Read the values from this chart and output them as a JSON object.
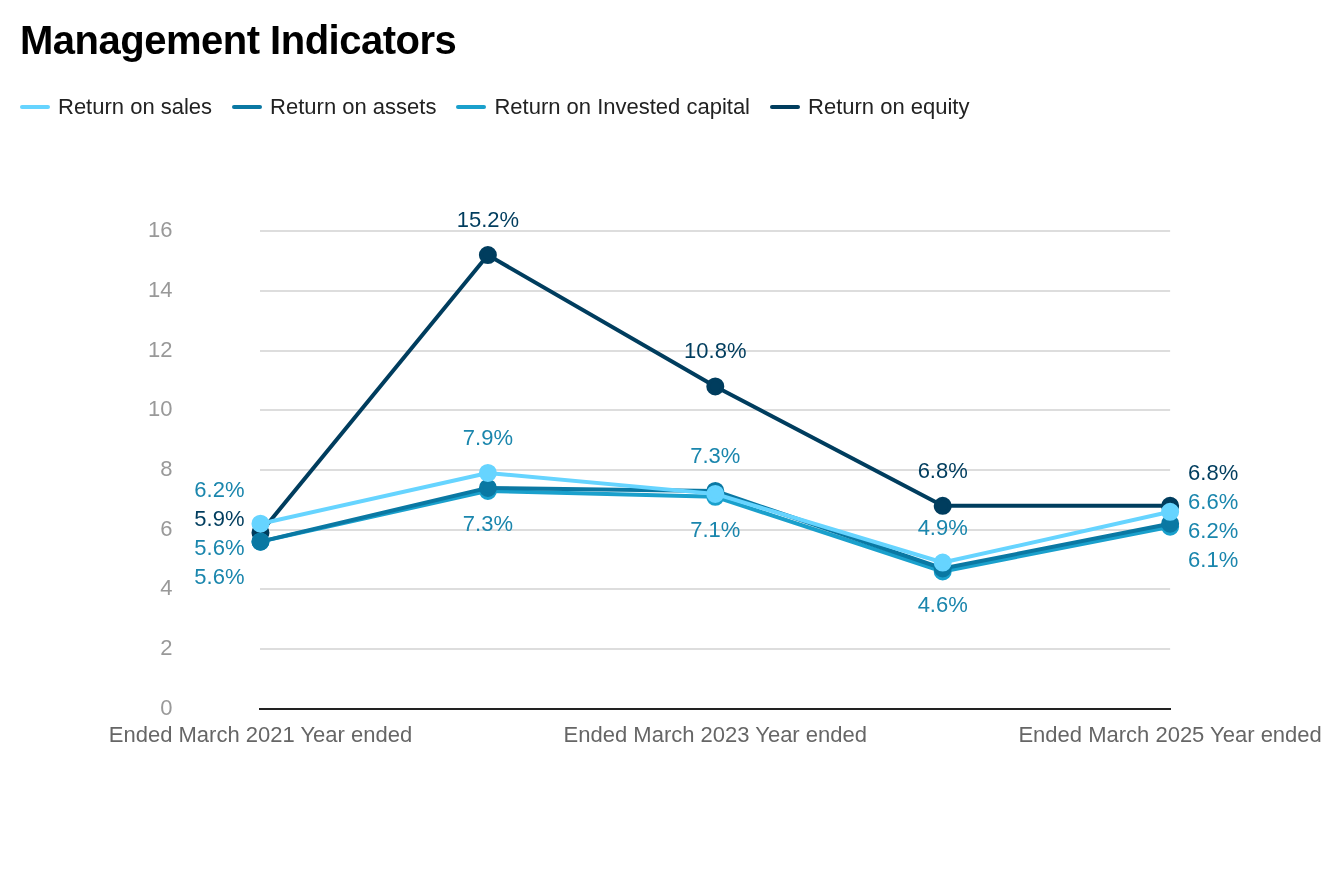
{
  "chart_data": {
    "type": "line",
    "title": "Management Indicators",
    "categories": [
      "Ended March 2021 Year ended",
      null,
      "Ended March 2023 Year ended",
      null,
      "Ended March 2025 Year ended"
    ],
    "series": [
      {
        "name": "Return on sales",
        "color": "#66d4ff",
        "values": [
          6.2,
          7.9,
          7.2,
          4.9,
          6.6
        ],
        "value_labels": [
          "6.2%",
          "7.9%",
          null,
          "4.9%",
          "6.6%"
        ]
      },
      {
        "name": "Return on assets",
        "color": "#0a78a3",
        "values": [
          5.6,
          7.4,
          7.3,
          4.7,
          6.2
        ],
        "value_labels": [
          "5.6%",
          null,
          "7.3%",
          null,
          "6.2%"
        ]
      },
      {
        "name": "Return on Invested capital",
        "color": "#1aa0cc",
        "values": [
          5.6,
          7.3,
          7.1,
          4.6,
          6.1
        ],
        "value_labels": [
          "5.6%",
          "7.3%",
          "7.1%",
          "4.6%",
          "6.1%"
        ]
      },
      {
        "name": "Return on equity",
        "color": "#003d5e",
        "values": [
          5.9,
          15.2,
          10.8,
          6.8,
          6.8
        ],
        "value_labels": [
          "5.9%",
          "15.2%",
          "10.8%",
          "6.8%",
          "6.8%"
        ]
      }
    ],
    "ylim": [
      0,
      16
    ],
    "yticks": [
      0,
      2,
      4,
      6,
      8,
      10,
      12,
      14,
      16
    ],
    "grid": "y",
    "legend": "top left",
    "marker": "circle",
    "line_style": "solid"
  }
}
